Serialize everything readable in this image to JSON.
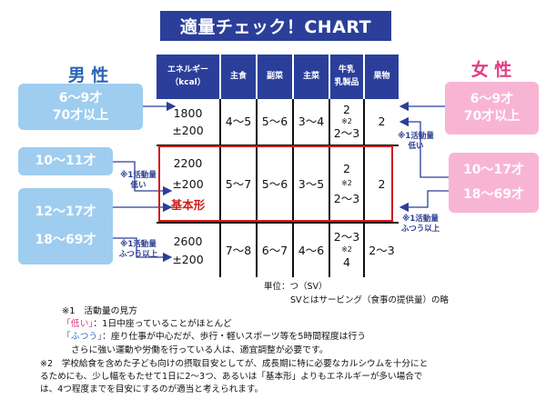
{
  "title": "適量チェック！CHART",
  "male": {
    "label": "男 性",
    "groups": [
      {
        "line1": "6〜9才",
        "line2": "70才以上"
      },
      {
        "line1": "10〜11才"
      },
      {
        "line1": "12〜17才",
        "line2": "18〜69才"
      }
    ],
    "notes": [
      {
        "line1": "※1活動量",
        "line2": "低い"
      },
      {
        "line1": "※1活動量",
        "line2": "ふつう以上"
      }
    ]
  },
  "female": {
    "label": "女 性",
    "groups": [
      {
        "line1": "6〜9才",
        "line2": "70才以上"
      },
      {
        "line1": "10〜17才",
        "line2": "18〜69才"
      }
    ],
    "notes": [
      {
        "line1": "※1活動量",
        "line2": "低い"
      },
      {
        "line1": "※1活動量",
        "line2": "ふつう以上"
      }
    ]
  },
  "table": {
    "headers": {
      "energy_line1": "エネルギー",
      "energy_line2": "（kcal）",
      "shushoku": "主食",
      "fukusai": "副菜",
      "shusai": "主菜",
      "milk_line1": "牛乳",
      "milk_line2": "乳製品",
      "fruit": "果物"
    },
    "rows": [
      {
        "kcal1": "1800",
        "kcal2": "±200",
        "shushoku": "4〜5",
        "fukusai": "5〜6",
        "shusai": "3〜4",
        "milk1": "2",
        "milk2": "※2",
        "milk3": "2〜3",
        "fruit": "2"
      },
      {
        "kcal1": "2200",
        "kcal2": "±200",
        "kcal3": "基本形",
        "shushoku": "5〜7",
        "fukusai": "5〜6",
        "shusai": "3〜5",
        "milk1": "2",
        "milk2": "※2",
        "milk3": "2〜3",
        "fruit": "2"
      },
      {
        "kcal1": "2600",
        "kcal2": "±200",
        "shushoku": "7〜8",
        "fukusai": "6〜7",
        "shusai": "4〜6",
        "milk1": "2〜3",
        "milk2": "※2",
        "milk3": "4",
        "fruit": "2〜3"
      }
    ]
  },
  "unit_text": "単位：つ（SV）",
  "sv_text": "SVとはサービング（食事の提供量）の略",
  "footnote1": {
    "title": "※1　活動量の見方",
    "low_key": "「低い」",
    "low_text": "：1日中座っていることがほとんど",
    "normal_key": "「ふつう」",
    "normal_text": "：座り仕事が中心だが、歩行・軽いスポーツ等を5時間程度は行う",
    "extra_text": "さらに強い運動や労働を行っている人は、適宜調整が必要です。"
  },
  "footnote2": {
    "line1": "※2　学校給食を含めた子ども向けの摂取目安としてが、成長期に特に必要なカルシウムを十分にと",
    "line2": "るためにも、少し幅をもたせて1日に2〜3つ、あるいは「基本形」よりもエネルギーが多い場合で",
    "line3": "は、4つ程度までを目安にするのが適当と考えられます。"
  },
  "colors": {
    "navy": "#2b3f9a",
    "male_box": "#9ecdf0",
    "female_box": "#f8b5d3",
    "highlight_border": "#d01c1c"
  }
}
